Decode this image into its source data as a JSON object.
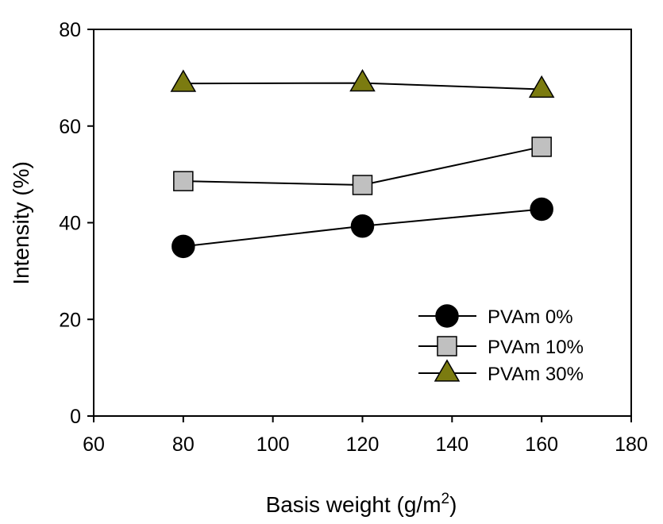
{
  "chart_data": {
    "type": "line",
    "xlabel": "Basis weight (g/m",
    "xlabel_superscript": "2",
    "xlabel_suffix": ")",
    "ylabel": "Intensity (%)",
    "xlim": [
      60,
      180
    ],
    "ylim": [
      0,
      80
    ],
    "x_ticks": [
      60,
      80,
      100,
      120,
      140,
      160,
      180
    ],
    "y_ticks": [
      0,
      20,
      40,
      60,
      80
    ],
    "grid": false,
    "legend_position": "bottom-right",
    "x": [
      80,
      120,
      160
    ],
    "series": [
      {
        "name": "PVAm 0%",
        "values": [
          35.1,
          39.3,
          42.8
        ],
        "marker": "circle",
        "color": "#000000"
      },
      {
        "name": "PVAm 10%",
        "values": [
          48.6,
          47.8,
          55.7
        ],
        "marker": "square",
        "color": "#c0c0c0"
      },
      {
        "name": "PVAm 30%",
        "values": [
          68.8,
          68.9,
          67.6
        ],
        "marker": "triangle",
        "color": "#7b7b10"
      }
    ]
  }
}
